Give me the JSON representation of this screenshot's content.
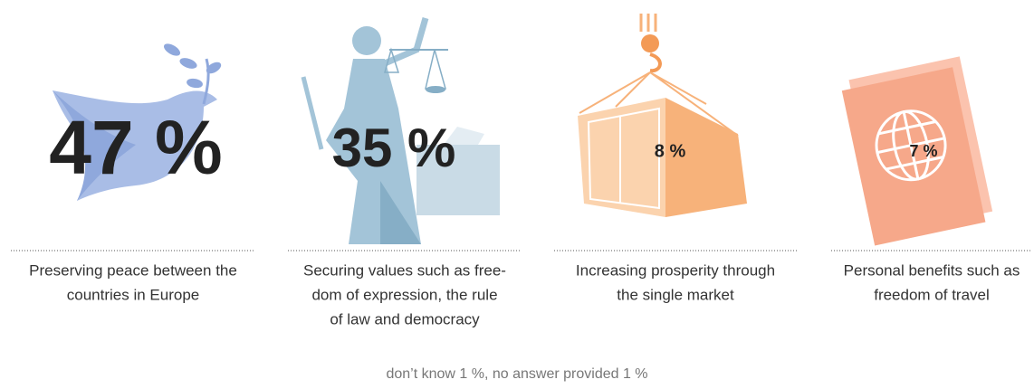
{
  "items": [
    {
      "value": "47 %",
      "lines": [
        "Preserving peace between the",
        "countries in Europe"
      ]
    },
    {
      "value": "35 %",
      "lines": [
        "Securing values such as free-",
        "dom of expression, the rule",
        "of law and democracy"
      ]
    },
    {
      "value": "8 %",
      "lines": [
        "Increasing prosperity through",
        "the single market"
      ]
    },
    {
      "value": "7 %",
      "lines": [
        "Personal benefits such as",
        "freedom of travel"
      ]
    }
  ],
  "footer": "don’t know 1 %, no answer provided 1 %"
}
